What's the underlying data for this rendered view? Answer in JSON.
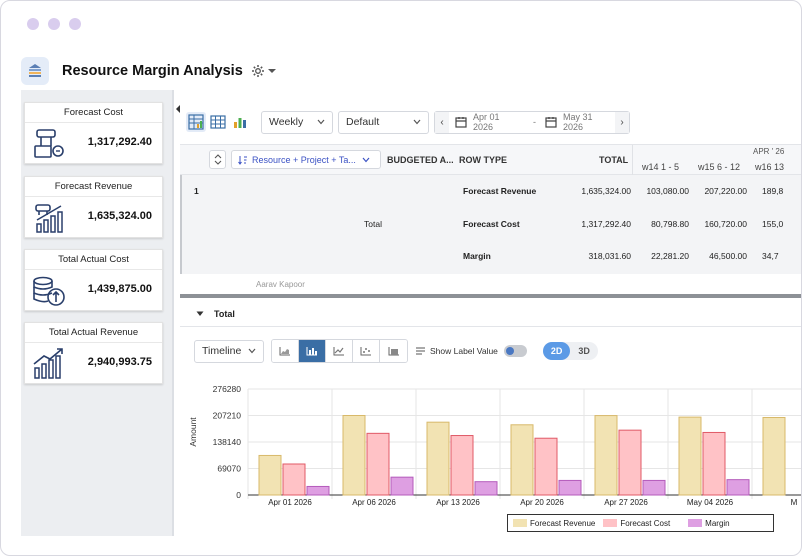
{
  "app": {
    "title": "Resource Margin Analysis"
  },
  "kpis": [
    {
      "title": "Forecast Cost",
      "value": "1,317,292.40",
      "icon": "forecast-cost-icon"
    },
    {
      "title": "Forecast Revenue",
      "value": "1,635,324.00",
      "icon": "forecast-revenue-icon"
    },
    {
      "title": "Total Actual Cost",
      "value": "1,439,875.00",
      "icon": "actual-cost-icon"
    },
    {
      "title": "Total Actual Revenue",
      "value": "2,940,993.75",
      "icon": "actual-revenue-icon"
    }
  ],
  "toolbar": {
    "period": "Weekly",
    "view": "Default",
    "date_from": "Apr 01 2026",
    "date_sep": "-",
    "date_to": "May 31 2026"
  },
  "grid": {
    "group_by": "Resource + Project + Ta...",
    "columns": {
      "budgeted": "BUDGETED A...",
      "row_type": "ROW TYPE",
      "total": "TOTAL"
    },
    "month_label": "APR ' 26",
    "weeks": [
      "w14  1 - 5",
      "w15  6 - 12",
      "w16  13"
    ],
    "row_index": "1",
    "total_label": "Total",
    "rows": [
      {
        "type": "Forecast Revenue",
        "total": "1,635,324.00",
        "w14": "103,080.00",
        "w15": "207,220.00",
        "w16": "189,8"
      },
      {
        "type": "Forecast Cost",
        "total": "1,317,292.40",
        "w14": "80,798.80",
        "w15": "160,720.00",
        "w16": "155,0"
      },
      {
        "type": "Margin",
        "total": "318,031.60",
        "w14": "22,281.20",
        "w15": "46,500.00",
        "w16": "34,7"
      }
    ],
    "partial_row": "Aarav Kapoor"
  },
  "total_section": {
    "label": "Total"
  },
  "chart_controls": {
    "mode": "Timeline",
    "show_label": "Show Label Value",
    "dim_2d": "2D",
    "dim_3d": "3D"
  },
  "colors": {
    "forecast_revenue_fill": "#f2e3b3",
    "forecast_revenue_stroke": "#d8b96a",
    "forecast_cost_fill": "#ffc2c6",
    "forecast_cost_stroke": "#e05a67",
    "margin_fill": "#de9fe2",
    "margin_stroke": "#b45bbb",
    "accent": "#3a6ea5"
  },
  "chart_data": {
    "type": "bar",
    "categories": [
      "Apr 01 2026",
      "Apr 06 2026",
      "Apr 13 2026",
      "Apr 20 2026",
      "Apr 27 2026",
      "May 04 2026",
      "M"
    ],
    "series": [
      {
        "name": "Forecast Revenue",
        "values": [
          103080,
          207220,
          189800,
          183000,
          207000,
          203000,
          202000
        ]
      },
      {
        "name": "Forecast Cost",
        "values": [
          80799,
          160720,
          155000,
          148000,
          169000,
          163000,
          null
        ]
      },
      {
        "name": "Margin",
        "values": [
          22281,
          46500,
          34700,
          38000,
          38000,
          40000,
          null
        ]
      }
    ],
    "yticks": [
      "276280",
      "207210",
      "138140",
      "69070",
      "0"
    ],
    "ylim": [
      0,
      276280
    ],
    "ylabel": "Amount",
    "legend": "bottom-right",
    "grid": true
  }
}
